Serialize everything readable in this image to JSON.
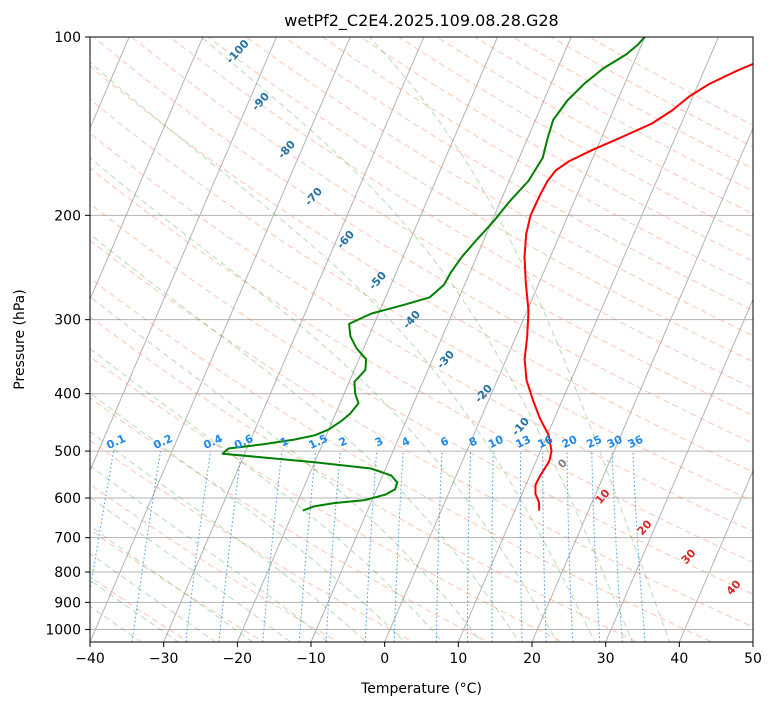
{
  "chart_data": {
    "type": "line",
    "subtype": "skew-t log-p diagram",
    "title": "wetPf2_C2E4.2025.109.08.28.G28",
    "xlabel": "Temperature (°C)",
    "ylabel": "Pressure (hPa)",
    "xlim": [
      -40,
      50
    ],
    "ylim": [
      1050,
      100
    ],
    "x_ticks": [
      -40,
      -30,
      -20,
      -10,
      0,
      10,
      20,
      30,
      40,
      50
    ],
    "y_ticks": [
      100,
      200,
      300,
      400,
      500,
      600,
      700,
      800,
      900,
      1000
    ],
    "grid": true,
    "series": [
      {
        "name": "temperature",
        "color": "#ff0000",
        "points": [
          [
            13.3,
            630
          ],
          [
            12.8,
            610
          ],
          [
            11.8,
            590
          ],
          [
            11.3,
            570
          ],
          [
            11.4,
            550
          ],
          [
            11.8,
            520
          ],
          [
            11.5,
            500
          ],
          [
            10.2,
            470
          ],
          [
            8.0,
            440
          ],
          [
            6.0,
            410
          ],
          [
            4.0,
            380
          ],
          [
            2.5,
            350
          ],
          [
            1.5,
            320
          ],
          [
            0.2,
            290
          ],
          [
            -1.8,
            260
          ],
          [
            -3.5,
            235
          ],
          [
            -4.6,
            215
          ],
          [
            -5.1,
            200
          ],
          [
            -5.0,
            185
          ],
          [
            -4.8,
            175
          ],
          [
            -4.3,
            168
          ],
          [
            -3.0,
            162
          ],
          [
            -0.5,
            155
          ],
          [
            2.5,
            148
          ],
          [
            6.0,
            140
          ],
          [
            8.0,
            133
          ],
          [
            9.5,
            126
          ],
          [
            11.5,
            120
          ],
          [
            14.5,
            114
          ],
          [
            17.5,
            109
          ],
          [
            18.5,
            105
          ],
          [
            19.3,
            102
          ],
          [
            20.0,
            100
          ]
        ]
      },
      {
        "name": "dewpoint",
        "color": "#008000",
        "points": [
          [
            -18.8,
            630
          ],
          [
            -17.5,
            620
          ],
          [
            -15.0,
            612
          ],
          [
            -11.0,
            605
          ],
          [
            -8.5,
            592
          ],
          [
            -7.5,
            580
          ],
          [
            -7.6,
            565
          ],
          [
            -8.8,
            550
          ],
          [
            -12.0,
            535
          ],
          [
            -20.0,
            522
          ],
          [
            -33.0,
            505
          ],
          [
            -32.5,
            495
          ],
          [
            -28.0,
            487
          ],
          [
            -24.0,
            478
          ],
          [
            -21.5,
            470
          ],
          [
            -20.0,
            460
          ],
          [
            -18.8,
            445
          ],
          [
            -18.0,
            432
          ],
          [
            -17.5,
            415
          ],
          [
            -18.5,
            400
          ],
          [
            -19.3,
            382
          ],
          [
            -18.5,
            365
          ],
          [
            -19.0,
            350
          ],
          [
            -21.0,
            335
          ],
          [
            -22.5,
            320
          ],
          [
            -23.4,
            305
          ],
          [
            -21.0,
            293
          ],
          [
            -17.0,
            283
          ],
          [
            -14.0,
            275
          ],
          [
            -12.8,
            262
          ],
          [
            -12.6,
            250
          ],
          [
            -12.0,
            235
          ],
          [
            -11.0,
            220
          ],
          [
            -9.8,
            205
          ],
          [
            -8.8,
            190
          ],
          [
            -7.4,
            175
          ],
          [
            -6.8,
            160
          ],
          [
            -7.3,
            148
          ],
          [
            -7.6,
            138
          ],
          [
            -6.8,
            128
          ],
          [
            -5.5,
            120
          ],
          [
            -3.8,
            113
          ],
          [
            -1.5,
            107
          ],
          [
            -0.5,
            103
          ],
          [
            0.0,
            100
          ]
        ]
      }
    ],
    "overlays": {
      "isotherm_labels": [
        "-100",
        "-90",
        "-80",
        "-70",
        "-60",
        "-50",
        "-40",
        "-30",
        "-20",
        "-10",
        "0",
        "10",
        "20",
        "30",
        "40"
      ],
      "mixing_ratio_labels": [
        "0.1",
        "0.2",
        "0.4",
        "0.6",
        "1",
        "1.5",
        "2",
        "3",
        "4",
        "6",
        "8",
        "10",
        "13",
        "16",
        "20",
        "25",
        "30",
        "36"
      ],
      "colors": {
        "isotherm_cold": "#2471a3",
        "isotherm_zero": "#7f7f7f",
        "isotherm_warm": "#d62728",
        "mixing_ratio": "#1e88e5",
        "dry_adiabat": "#ff7f50",
        "moist_adiabat": "#2ca02c",
        "grid": "#b3b3b3"
      }
    }
  }
}
